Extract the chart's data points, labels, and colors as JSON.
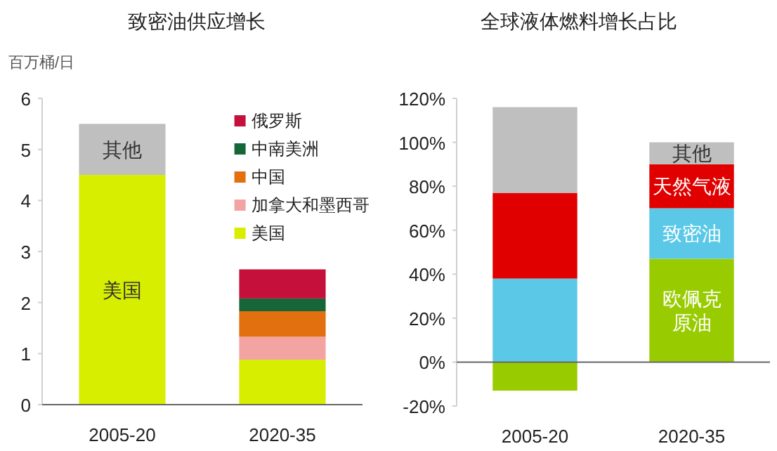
{
  "chart_data": [
    {
      "type": "bar",
      "title": "致密油供应增长",
      "ylabel": "百万桶/日",
      "categories": [
        "2005-20",
        "2020-35"
      ],
      "stacked": true,
      "ylim": [
        0,
        6
      ],
      "yticks": [
        0,
        1,
        2,
        3,
        4,
        5,
        6
      ],
      "legend": "top right",
      "series": [
        {
          "name": "美国",
          "color": "#d7ee00",
          "values": [
            4.5,
            0.88
          ],
          "value_labels": [
            "美国",
            null
          ]
        },
        {
          "name": "加拿大和墨西哥",
          "color": "#f4a3a3",
          "values": [
            0,
            0.45
          ]
        },
        {
          "name": "中国",
          "color": "#e2700f",
          "values": [
            0,
            0.5
          ]
        },
        {
          "name": "中南美洲",
          "color": "#17663a",
          "values": [
            0,
            0.25
          ]
        },
        {
          "name": "俄罗斯",
          "color": "#c4103a",
          "values": [
            0,
            0.57
          ]
        },
        {
          "color": "#bfbfbf",
          "values": [
            1.0,
            0
          ],
          "value_labels": [
            "其他",
            null
          ]
        }
      ]
    },
    {
      "type": "bar",
      "title": "全球液体燃料增长占比",
      "categories": [
        "2005-20",
        "2020-35"
      ],
      "stacked": true,
      "ylim": [
        -20,
        120
      ],
      "yticks": [
        {
          "value": -20,
          "label": "-20%"
        },
        {
          "value": 0,
          "label": "0%"
        },
        {
          "value": 20,
          "label": "20%"
        },
        {
          "value": 40,
          "label": "40%"
        },
        {
          "value": 60,
          "label": "60%"
        },
        {
          "value": 80,
          "label": "80%"
        },
        {
          "value": 100,
          "label": "100%"
        },
        {
          "value": 120,
          "label": "120%"
        }
      ],
      "series": [
        {
          "color": "#99cc00",
          "values": [
            -13,
            47
          ],
          "value_labels": [
            null,
            "欧佩克原油"
          ]
        },
        {
          "color": "#5bc8e8",
          "values": [
            38,
            23
          ],
          "value_labels": [
            null,
            "致密油"
          ]
        },
        {
          "color": "#e00000",
          "values": [
            39,
            20
          ],
          "value_labels": [
            null,
            "天然气液"
          ]
        },
        {
          "color": "#bfbfbf",
          "values": [
            39,
            10
          ],
          "value_labels": [
            null,
            "其他"
          ]
        }
      ]
    }
  ]
}
